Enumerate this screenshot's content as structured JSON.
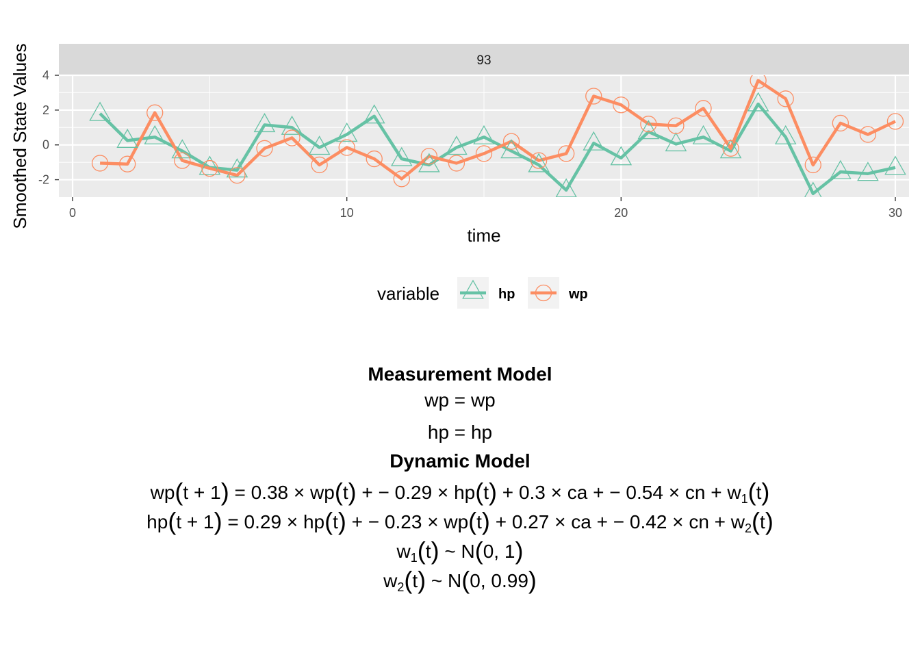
{
  "chart_data": {
    "type": "line",
    "facet_label": "93",
    "xlabel": "time",
    "ylabel": "Smoothed State Values",
    "xlim": [
      -0.5,
      30.5
    ],
    "ylim": [
      -3.0,
      4.0
    ],
    "x_ticks": [
      0,
      10,
      20,
      30
    ],
    "y_ticks": [
      -2,
      0,
      2,
      4
    ],
    "grid": true,
    "legend_title": "variable",
    "legend_position": "bottom",
    "x": [
      1,
      2,
      3,
      4,
      5,
      6,
      7,
      8,
      9,
      10,
      11,
      12,
      13,
      14,
      15,
      16,
      17,
      18,
      19,
      20,
      21,
      22,
      23,
      24,
      25,
      26,
      27,
      28,
      29,
      30
    ],
    "series": [
      {
        "name": "hp",
        "color": "#66C2A5",
        "marker": "triangle",
        "values": [
          1.8,
          0.25,
          0.45,
          -0.35,
          -1.3,
          -1.45,
          1.15,
          1.0,
          -0.15,
          0.6,
          1.65,
          -0.8,
          -1.15,
          -0.15,
          0.45,
          -0.35,
          -1.15,
          -2.6,
          0.1,
          -0.75,
          0.75,
          0.05,
          0.45,
          -0.35,
          2.35,
          0.45,
          -2.8,
          -1.55,
          -1.65,
          -1.3
        ]
      },
      {
        "name": "wp",
        "color": "#FC8D62",
        "marker": "circle",
        "values": [
          -1.05,
          -1.1,
          1.85,
          -0.9,
          -1.35,
          -1.75,
          -0.2,
          0.4,
          -1.15,
          -0.15,
          -0.8,
          -1.95,
          -0.65,
          -1.05,
          -0.5,
          0.2,
          -0.9,
          -0.5,
          2.8,
          2.3,
          1.2,
          1.1,
          2.1,
          -0.2,
          3.7,
          2.65,
          -1.15,
          1.25,
          0.6,
          1.35
        ]
      }
    ]
  },
  "equations": {
    "measurement_title": "Measurement Model",
    "m1_lhs": "wp",
    "m1_rhs": "wp",
    "m2_lhs": "hp",
    "m2_rhs": "hp",
    "dynamic_title": "Dynamic Model",
    "d1_var": "wp",
    "d1_c1": "0.38",
    "d1_v1": "wp",
    "d1_c2": "0.29",
    "d1_v2": "hp",
    "d1_c3": "0.3",
    "d1_v3": "ca",
    "d1_c4": "0.54",
    "d1_v4": "cn",
    "d1_noise_sub": "1",
    "d2_var": "hp",
    "d2_c1": "0.29",
    "d2_v1": "hp",
    "d2_c2": "0.23",
    "d2_v2": "wp",
    "d2_c3": "0.27",
    "d2_v3": "ca",
    "d2_c4": "0.42",
    "d2_v4": "cn",
    "d2_noise_sub": "2",
    "n1_sub": "1",
    "n1_var": "1",
    "n2_sub": "2",
    "n2_var": "0.99"
  }
}
